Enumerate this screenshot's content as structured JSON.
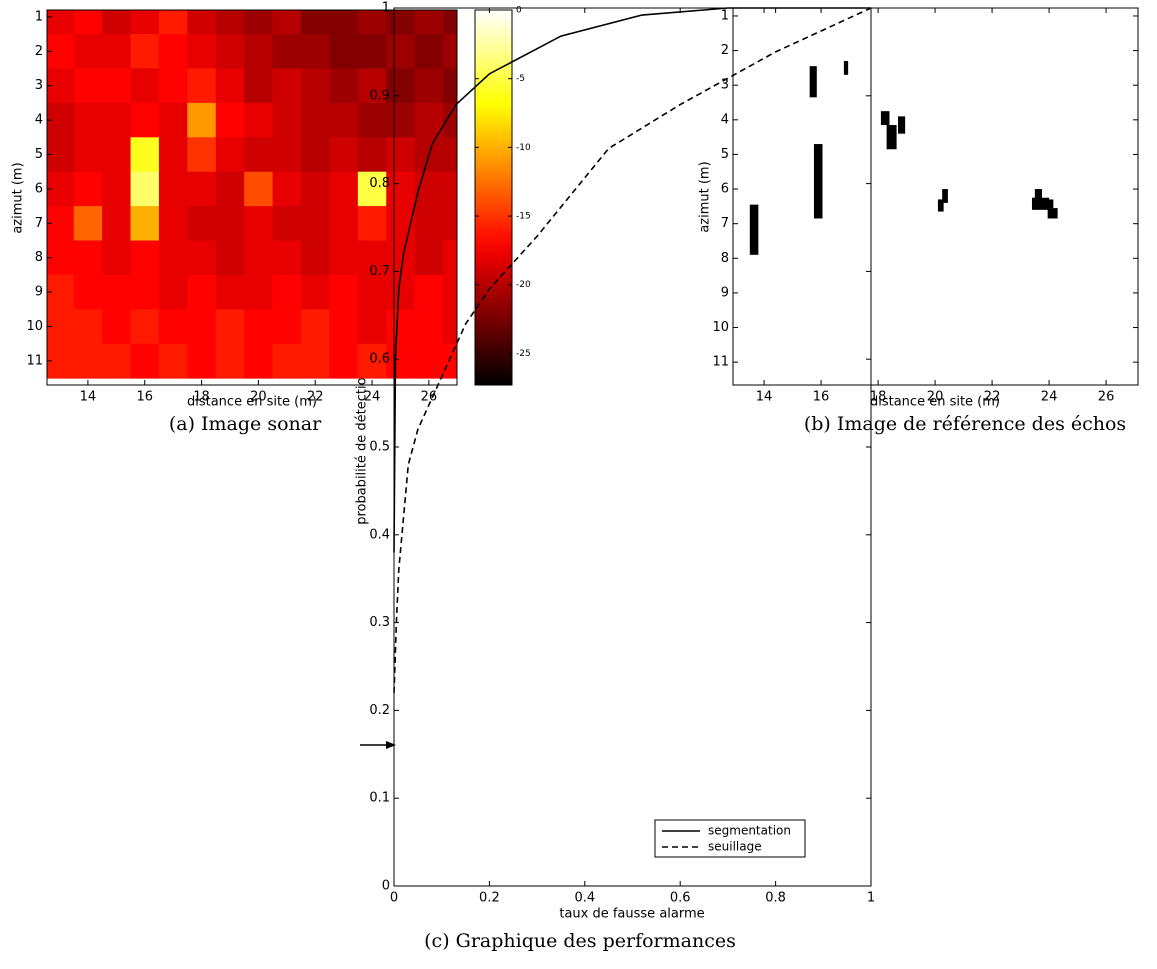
{
  "chart_data": [
    {
      "type": "heatmap",
      "caption": "(a) Image sonar",
      "xlabel": "distance en site (m)",
      "ylabel": "azimut (m)",
      "colormap": "hot",
      "x": [
        13,
        14,
        15,
        16,
        17,
        18,
        19,
        20,
        21,
        22,
        23,
        24,
        25,
        26,
        27
      ],
      "y": [
        1,
        2,
        3,
        4,
        5,
        6,
        7,
        8,
        9,
        10,
        11
      ],
      "z": [
        [
          -18,
          -17,
          -19,
          -18,
          -16,
          -19,
          -20,
          -21,
          -20,
          -22,
          -22,
          -21,
          -22,
          -21,
          -22
        ],
        [
          -17,
          -18,
          -18,
          -16,
          -17,
          -18,
          -19,
          -20,
          -21,
          -21,
          -22,
          -22,
          -21,
          -22,
          -21
        ],
        [
          -18,
          -17,
          -17,
          -18,
          -17,
          -16,
          -18,
          -20,
          -19,
          -20,
          -21,
          -20,
          -22,
          -21,
          -22
        ],
        [
          -19,
          -18,
          -18,
          -17,
          -18,
          -11,
          -17,
          -18,
          -19,
          -20,
          -20,
          -21,
          -21,
          -20,
          -21
        ],
        [
          -19,
          -18,
          -18,
          -6,
          -18,
          -15,
          -18,
          -19,
          -19,
          -20,
          -19,
          -20,
          -19,
          -20,
          -20
        ],
        [
          -18,
          -17,
          -18,
          -4,
          -18,
          -18,
          -19,
          -14,
          -18,
          -19,
          -18,
          -5,
          -18,
          -19,
          -19
        ],
        [
          -17,
          -13,
          -18,
          -10,
          -18,
          -19,
          -19,
          -18,
          -19,
          -19,
          -18,
          -16,
          -18,
          -19,
          -19
        ],
        [
          -17,
          -17,
          -18,
          -17,
          -18,
          -18,
          -19,
          -18,
          -18,
          -19,
          -18,
          -18,
          -18,
          -19,
          -18
        ],
        [
          -16,
          -17,
          -17,
          -17,
          -18,
          -17,
          -18,
          -18,
          -17,
          -18,
          -17,
          -18,
          -18,
          -17,
          -18
        ],
        [
          -16,
          -16,
          -17,
          -16,
          -17,
          -17,
          -16,
          -17,
          -17,
          -16,
          -17,
          -18,
          -17,
          -17,
          -18
        ],
        [
          -16,
          -16,
          -16,
          -17,
          -16,
          -17,
          -16,
          -17,
          -16,
          -16,
          -17,
          -16,
          -17,
          -17,
          -17
        ]
      ],
      "xlim": [
        12.56,
        26.99
      ],
      "ylim": [
        11.7,
        0.8
      ],
      "xticks": [
        14,
        16,
        18,
        20,
        22,
        24,
        26
      ],
      "yticks": [
        1,
        2,
        3,
        4,
        5,
        6,
        7,
        8,
        9,
        10,
        11
      ],
      "clim": [
        -27.3,
        0
      ],
      "cticks": [
        0,
        -5,
        -10,
        -15,
        -20,
        -25
      ]
    },
    {
      "type": "blocks",
      "caption": "(b) Image de référence des échos",
      "xlabel": "distance en site (m)",
      "ylabel": "azimut (m)",
      "color": "#000000",
      "rects": [
        [
          13.5,
          13.8,
          6.45,
          7.9
        ],
        [
          15.6,
          15.85,
          2.45,
          3.35
        ],
        [
          16.8,
          16.95,
          2.3,
          2.7
        ],
        [
          15.75,
          16.05,
          4.7,
          6.85
        ],
        [
          18.1,
          18.4,
          3.75,
          4.15
        ],
        [
          18.3,
          18.65,
          4.15,
          4.85
        ],
        [
          18.7,
          18.95,
          3.9,
          4.4
        ],
        [
          20.25,
          20.45,
          6.0,
          6.4
        ],
        [
          20.1,
          20.3,
          6.3,
          6.65
        ],
        [
          23.5,
          23.75,
          6.0,
          6.3
        ],
        [
          23.4,
          24.0,
          6.25,
          6.6
        ],
        [
          23.95,
          24.3,
          6.55,
          6.85
        ],
        [
          23.95,
          24.15,
          6.3,
          6.55
        ]
      ],
      "xlim": [
        12.91,
        27.12
      ],
      "ylim": [
        11.66,
        0.77
      ],
      "xticks": [
        14,
        16,
        18,
        20,
        22,
        24,
        26
      ],
      "yticks": [
        1,
        2,
        3,
        4,
        5,
        6,
        7,
        8,
        9,
        10,
        11
      ]
    },
    {
      "type": "line",
      "caption": "(c) Graphique des performances",
      "xlabel": "taux de fausse alarme",
      "ylabel": "probabilité de détection",
      "legend": "lower right",
      "series": [
        {
          "name": "segmentation",
          "color": "#000000",
          "dash": "solid",
          "x": [
            0,
            0.003,
            0.01,
            0.02,
            0.05,
            0.08,
            0.13,
            0.2,
            0.35,
            0.52,
            0.7,
            1
          ],
          "values": [
            0.38,
            0.6,
            0.68,
            0.72,
            0.79,
            0.845,
            0.89,
            0.925,
            0.968,
            0.992,
            1,
            1
          ]
        },
        {
          "name": "seuillage",
          "color": "#000000",
          "dash": "dashed",
          "x": [
            0,
            0.005,
            0.01,
            0.02,
            0.03,
            0.05,
            0.1,
            0.15,
            0.2,
            0.3,
            0.45,
            0.6,
            0.8,
            1
          ],
          "values": [
            0.22,
            0.3,
            0.36,
            0.42,
            0.48,
            0.52,
            0.58,
            0.64,
            0.68,
            0.74,
            0.84,
            0.89,
            0.95,
            1
          ]
        }
      ],
      "xlim": [
        0,
        1
      ],
      "ylim": [
        0,
        1
      ],
      "xticks": [
        0,
        0.2,
        0.4,
        0.6,
        0.8,
        1
      ],
      "yticks": [
        0,
        0.1,
        0.2,
        0.3,
        0.4,
        0.5,
        0.6,
        0.7,
        0.8,
        0.9,
        1
      ]
    }
  ]
}
